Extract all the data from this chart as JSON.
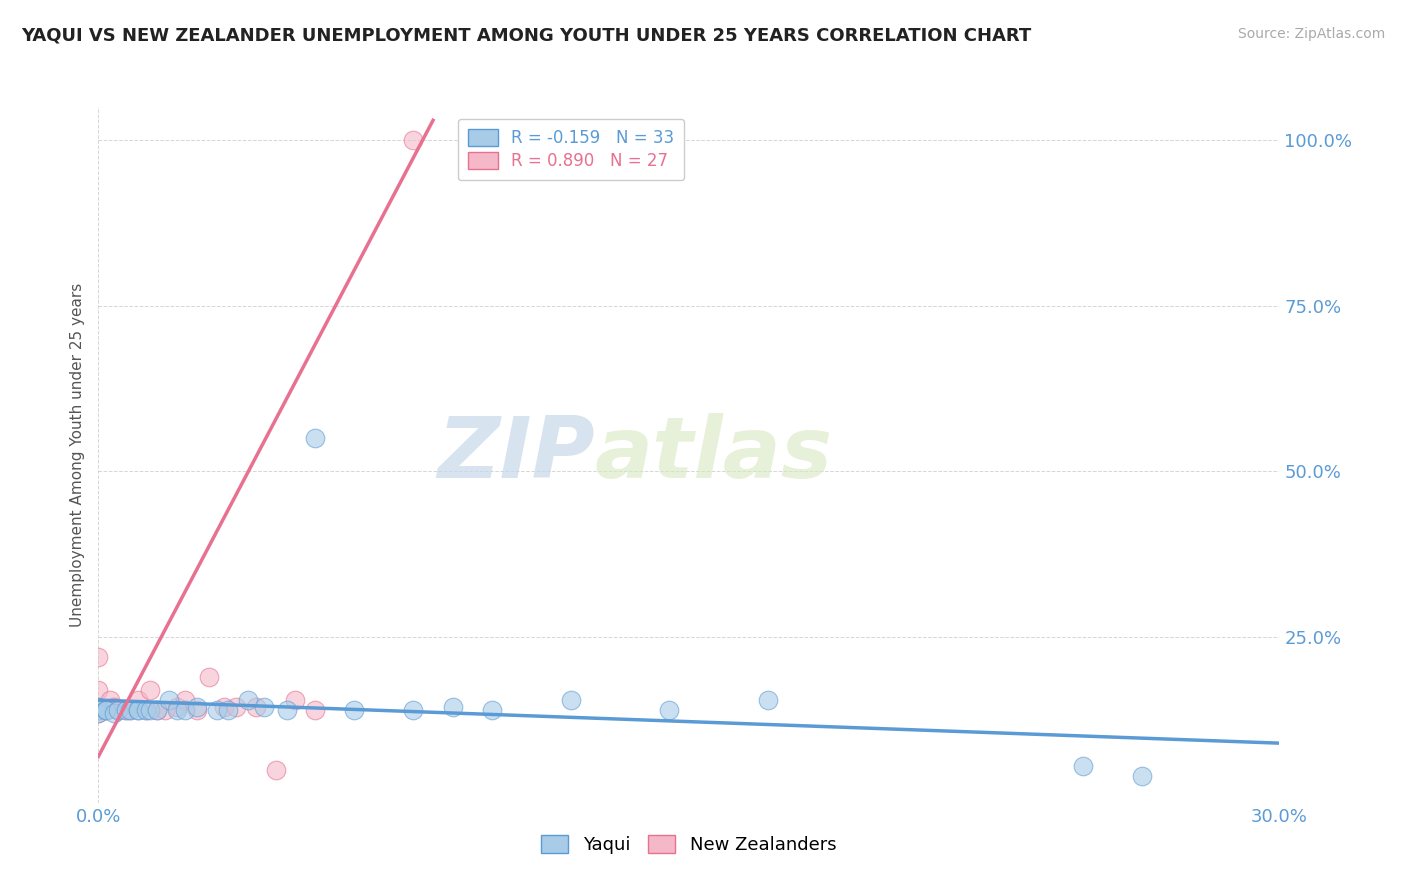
{
  "title": "YAQUI VS NEW ZEALANDER UNEMPLOYMENT AMONG YOUTH UNDER 25 YEARS CORRELATION CHART",
  "source": "Source: ZipAtlas.com",
  "ylabel": "Unemployment Among Youth under 25 years",
  "xlim": [
    0.0,
    0.3
  ],
  "ylim": [
    0.0,
    1.05
  ],
  "ytick_values": [
    0.0,
    0.25,
    0.5,
    0.75,
    1.0
  ],
  "ytick_labels": [
    "",
    "25.0%",
    "50.0%",
    "75.0%",
    "100.0%"
  ],
  "xtick_values": [
    0.0,
    0.3
  ],
  "xtick_labels": [
    "0.0%",
    "30.0%"
  ],
  "legend_entry1": "R = -0.159   N = 33",
  "legend_entry2": "R = 0.890   N = 27",
  "yaqui_color": "#a8cce8",
  "nz_color": "#f4b8c8",
  "line_yaqui_color": "#5b9bd5",
  "line_nz_color": "#e87090",
  "background_color": "#ffffff",
  "watermark_zip": "ZIP",
  "watermark_atlas": "atlas",
  "yaqui_points_x": [
    0.0,
    0.0,
    0.0,
    0.002,
    0.002,
    0.004,
    0.005,
    0.007,
    0.008,
    0.01,
    0.01,
    0.012,
    0.013,
    0.015,
    0.018,
    0.02,
    0.022,
    0.025,
    0.03,
    0.033,
    0.038,
    0.042,
    0.048,
    0.055,
    0.065,
    0.08,
    0.09,
    0.1,
    0.12,
    0.145,
    0.17,
    0.25,
    0.265
  ],
  "yaqui_points_y": [
    0.14,
    0.145,
    0.135,
    0.14,
    0.14,
    0.135,
    0.14,
    0.14,
    0.14,
    0.14,
    0.14,
    0.14,
    0.14,
    0.14,
    0.155,
    0.14,
    0.14,
    0.145,
    0.14,
    0.14,
    0.155,
    0.145,
    0.14,
    0.55,
    0.14,
    0.14,
    0.145,
    0.14,
    0.155,
    0.14,
    0.155,
    0.055,
    0.04
  ],
  "nz_points_x": [
    0.0,
    0.0,
    0.0,
    0.0,
    0.0,
    0.002,
    0.003,
    0.004,
    0.005,
    0.007,
    0.008,
    0.01,
    0.012,
    0.013,
    0.015,
    0.017,
    0.02,
    0.022,
    0.025,
    0.028,
    0.032,
    0.035,
    0.04,
    0.045,
    0.05,
    0.055,
    0.08
  ],
  "nz_points_y": [
    0.135,
    0.14,
    0.145,
    0.17,
    0.22,
    0.14,
    0.155,
    0.145,
    0.14,
    0.14,
    0.14,
    0.155,
    0.14,
    0.17,
    0.14,
    0.14,
    0.145,
    0.155,
    0.14,
    0.19,
    0.145,
    0.145,
    0.145,
    0.05,
    0.155,
    0.14,
    1.0
  ],
  "yaqui_trendline_x": [
    0.0,
    0.3
  ],
  "yaqui_trendline_y": [
    0.155,
    0.09
  ],
  "nz_trendline_x": [
    0.0,
    0.085
  ],
  "nz_trendline_y": [
    0.07,
    1.03
  ]
}
